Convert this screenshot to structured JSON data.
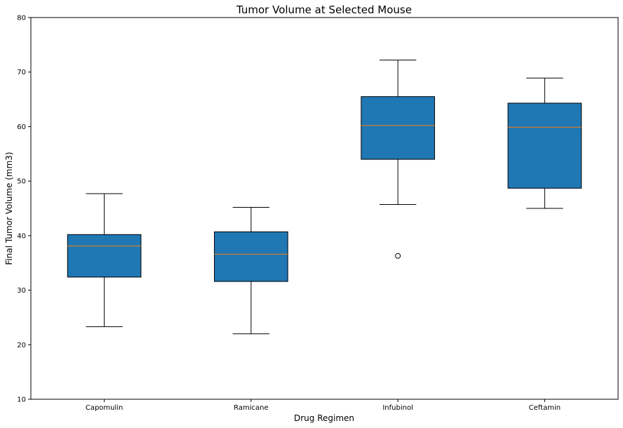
{
  "chart_data": {
    "type": "box",
    "title": "Tumor Volume at Selected Mouse",
    "xlabel": "Drug Regimen",
    "ylabel": "Final Tumor Volume (mm3)",
    "ylim": [
      10,
      80
    ],
    "yticks": [
      10,
      20,
      30,
      40,
      50,
      60,
      70,
      80
    ],
    "grid": false,
    "categories": [
      "Capomulin",
      "Ramicane",
      "Infubinol",
      "Ceftamin"
    ],
    "boxes": [
      {
        "category": "Capomulin",
        "whisker_low": 23.3,
        "q1": 32.4,
        "median": 38.1,
        "q3": 40.2,
        "whisker_high": 47.7,
        "outliers": []
      },
      {
        "category": "Ramicane",
        "whisker_low": 22.0,
        "q1": 31.6,
        "median": 36.6,
        "q3": 40.7,
        "whisker_high": 45.2,
        "outliers": []
      },
      {
        "category": "Infubinol",
        "whisker_low": 45.7,
        "q1": 54.0,
        "median": 60.2,
        "q3": 65.5,
        "whisker_high": 72.2,
        "outliers": [
          36.3
        ]
      },
      {
        "category": "Ceftamin",
        "whisker_low": 45.0,
        "q1": 48.7,
        "median": 59.9,
        "q3": 64.3,
        "whisker_high": 68.9,
        "outliers": []
      }
    ],
    "colors": {
      "box_fill": "#1f77b4",
      "median_line": "#ff7f0e",
      "edge": "#000000"
    }
  }
}
